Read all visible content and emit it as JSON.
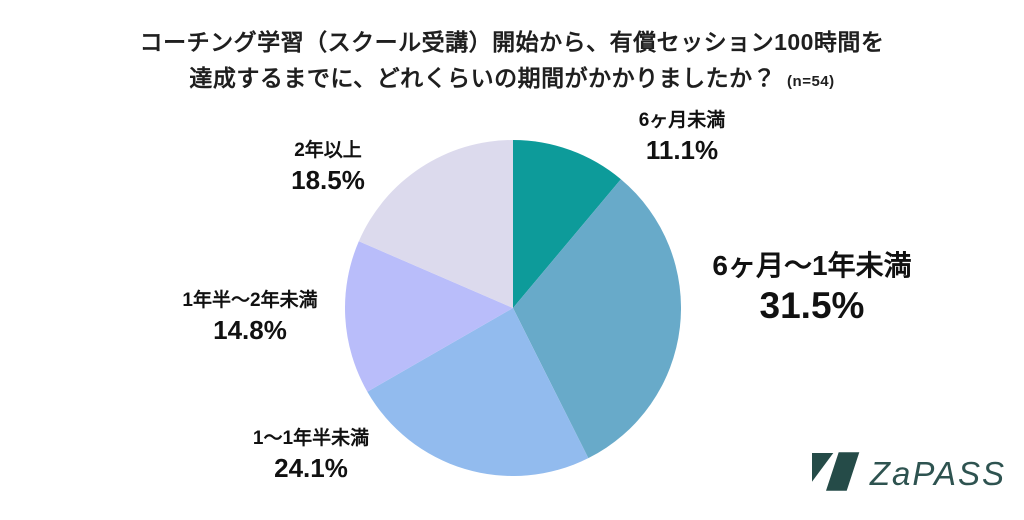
{
  "title": {
    "line1": "コーチング学習（スクール受講）開始から、有償セッション100時間を",
    "line2": "達成するまでに、どれくらいの期間がかかりましたか？",
    "sample_size": "(n=54)"
  },
  "chart_data": {
    "type": "pie",
    "title": "コーチング学習（スクール受講）開始から、有償セッション100時間を達成するまでに、どれくらいの期間がかかりましたか？",
    "sample_size": 54,
    "start_angle_deg": 0,
    "direction": "clockwise",
    "legend_position": "none",
    "categories": [
      "6ヶ月未満",
      "6ヶ月〜1年未満",
      "1〜1年半未満",
      "1年半〜2年未満",
      "2年以上"
    ],
    "values": [
      11.1,
      31.5,
      24.1,
      14.8,
      18.5
    ],
    "display_values": [
      "11.1%",
      "31.5%",
      "14.8%",
      "18.5%",
      "24.1%"
    ],
    "display_values_ordered": [
      "11.1%",
      "31.5%",
      "24.1%",
      "14.8%",
      "18.5%"
    ],
    "colors": [
      "#0d9b9a",
      "#68aac9",
      "#92bbee",
      "#b9bdfa",
      "#dcdaed"
    ]
  },
  "logo": {
    "text": "ZaPASS",
    "mark_color": "#254b48",
    "text_color": "#2e5350"
  }
}
